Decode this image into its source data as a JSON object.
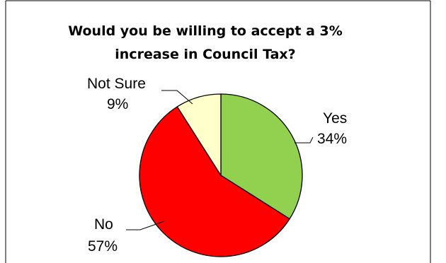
{
  "chart_data": {
    "type": "pie",
    "title_lines": [
      "Would you be willing to accept a 3%",
      "increase in Council Tax?"
    ],
    "start_angle": "12 o'clock",
    "direction": "clockwise",
    "slices": [
      {
        "label": "Yes",
        "value": 34,
        "display": "34%",
        "color": "#92D050"
      },
      {
        "label": "No",
        "value": 57,
        "display": "57%",
        "color": "#FF0000"
      },
      {
        "label": "Not Sure",
        "value": 9,
        "display": "9%",
        "color": "#FFFFCC"
      }
    ],
    "slice_border_color": "#000000",
    "legend": "none"
  }
}
